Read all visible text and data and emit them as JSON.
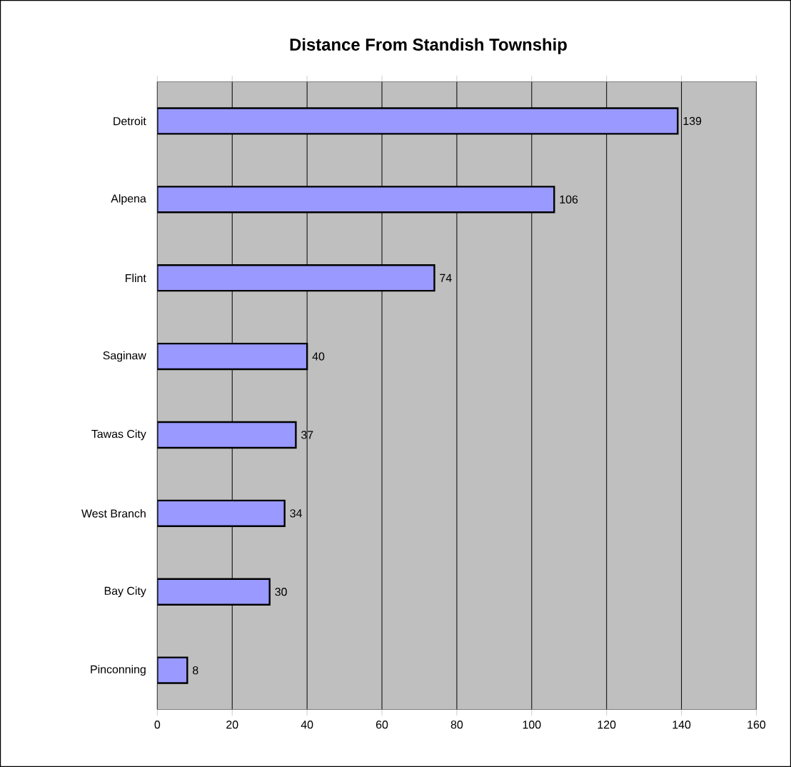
{
  "chart_data": {
    "type": "bar",
    "orientation": "horizontal",
    "title": "Distance From Standish Township",
    "categories": [
      "Detroit",
      "Alpena",
      "Flint",
      "Saginaw",
      "Tawas City",
      "West Branch",
      "Bay City",
      "Pinconning"
    ],
    "values": [
      139,
      106,
      74,
      40,
      37,
      34,
      30,
      8
    ],
    "color": "#9999ff",
    "xlim": [
      0,
      160
    ],
    "xticks": [
      0,
      20,
      40,
      60,
      80,
      100,
      120,
      140,
      160
    ],
    "grid": "x",
    "data_labels": true,
    "legend": false
  }
}
